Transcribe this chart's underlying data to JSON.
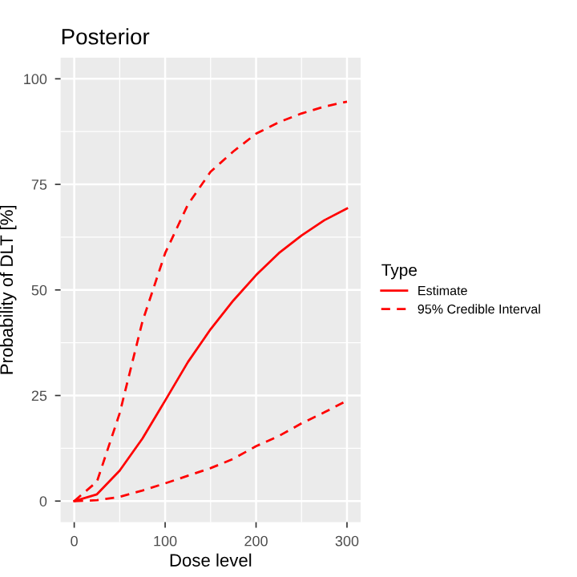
{
  "chart_data": {
    "type": "line",
    "title": "Posterior",
    "xlabel": "Dose level",
    "ylabel": "Probability of DLT [%]",
    "legend_title": "Type",
    "legend": "right",
    "grid": true,
    "xlim": [
      -15,
      315
    ],
    "xticks": [
      0,
      100,
      200,
      300
    ],
    "ylim": [
      -5,
      105
    ],
    "yticks": [
      0,
      25,
      50,
      75,
      100
    ],
    "x": [
      0,
      25,
      50,
      75,
      100,
      125,
      150,
      175,
      200,
      225,
      250,
      275,
      300
    ],
    "series": [
      {
        "name": "Estimate",
        "color": "#ff0000",
        "line_style": "solid",
        "values": [
          0,
          1.6,
          7.2,
          14.8,
          23.8,
          32.9,
          40.7,
          47.5,
          53.5,
          58.7,
          62.9,
          66.5,
          69.3
        ]
      },
      {
        "name": "95% Credible Interval",
        "color": "#ff0000",
        "line_style": "dashed",
        "values": [
          0,
          4.6,
          20.8,
          42.5,
          58.7,
          70.2,
          78,
          82.8,
          87,
          89.7,
          91.8,
          93.4,
          94.6
        ]
      },
      {
        "color": "#ff0000",
        "line_style": "dashed",
        "values": [
          0,
          0.2,
          1,
          2.5,
          4.2,
          6,
          7.8,
          10,
          13,
          15.4,
          18.4,
          21,
          23.8
        ]
      }
    ]
  }
}
